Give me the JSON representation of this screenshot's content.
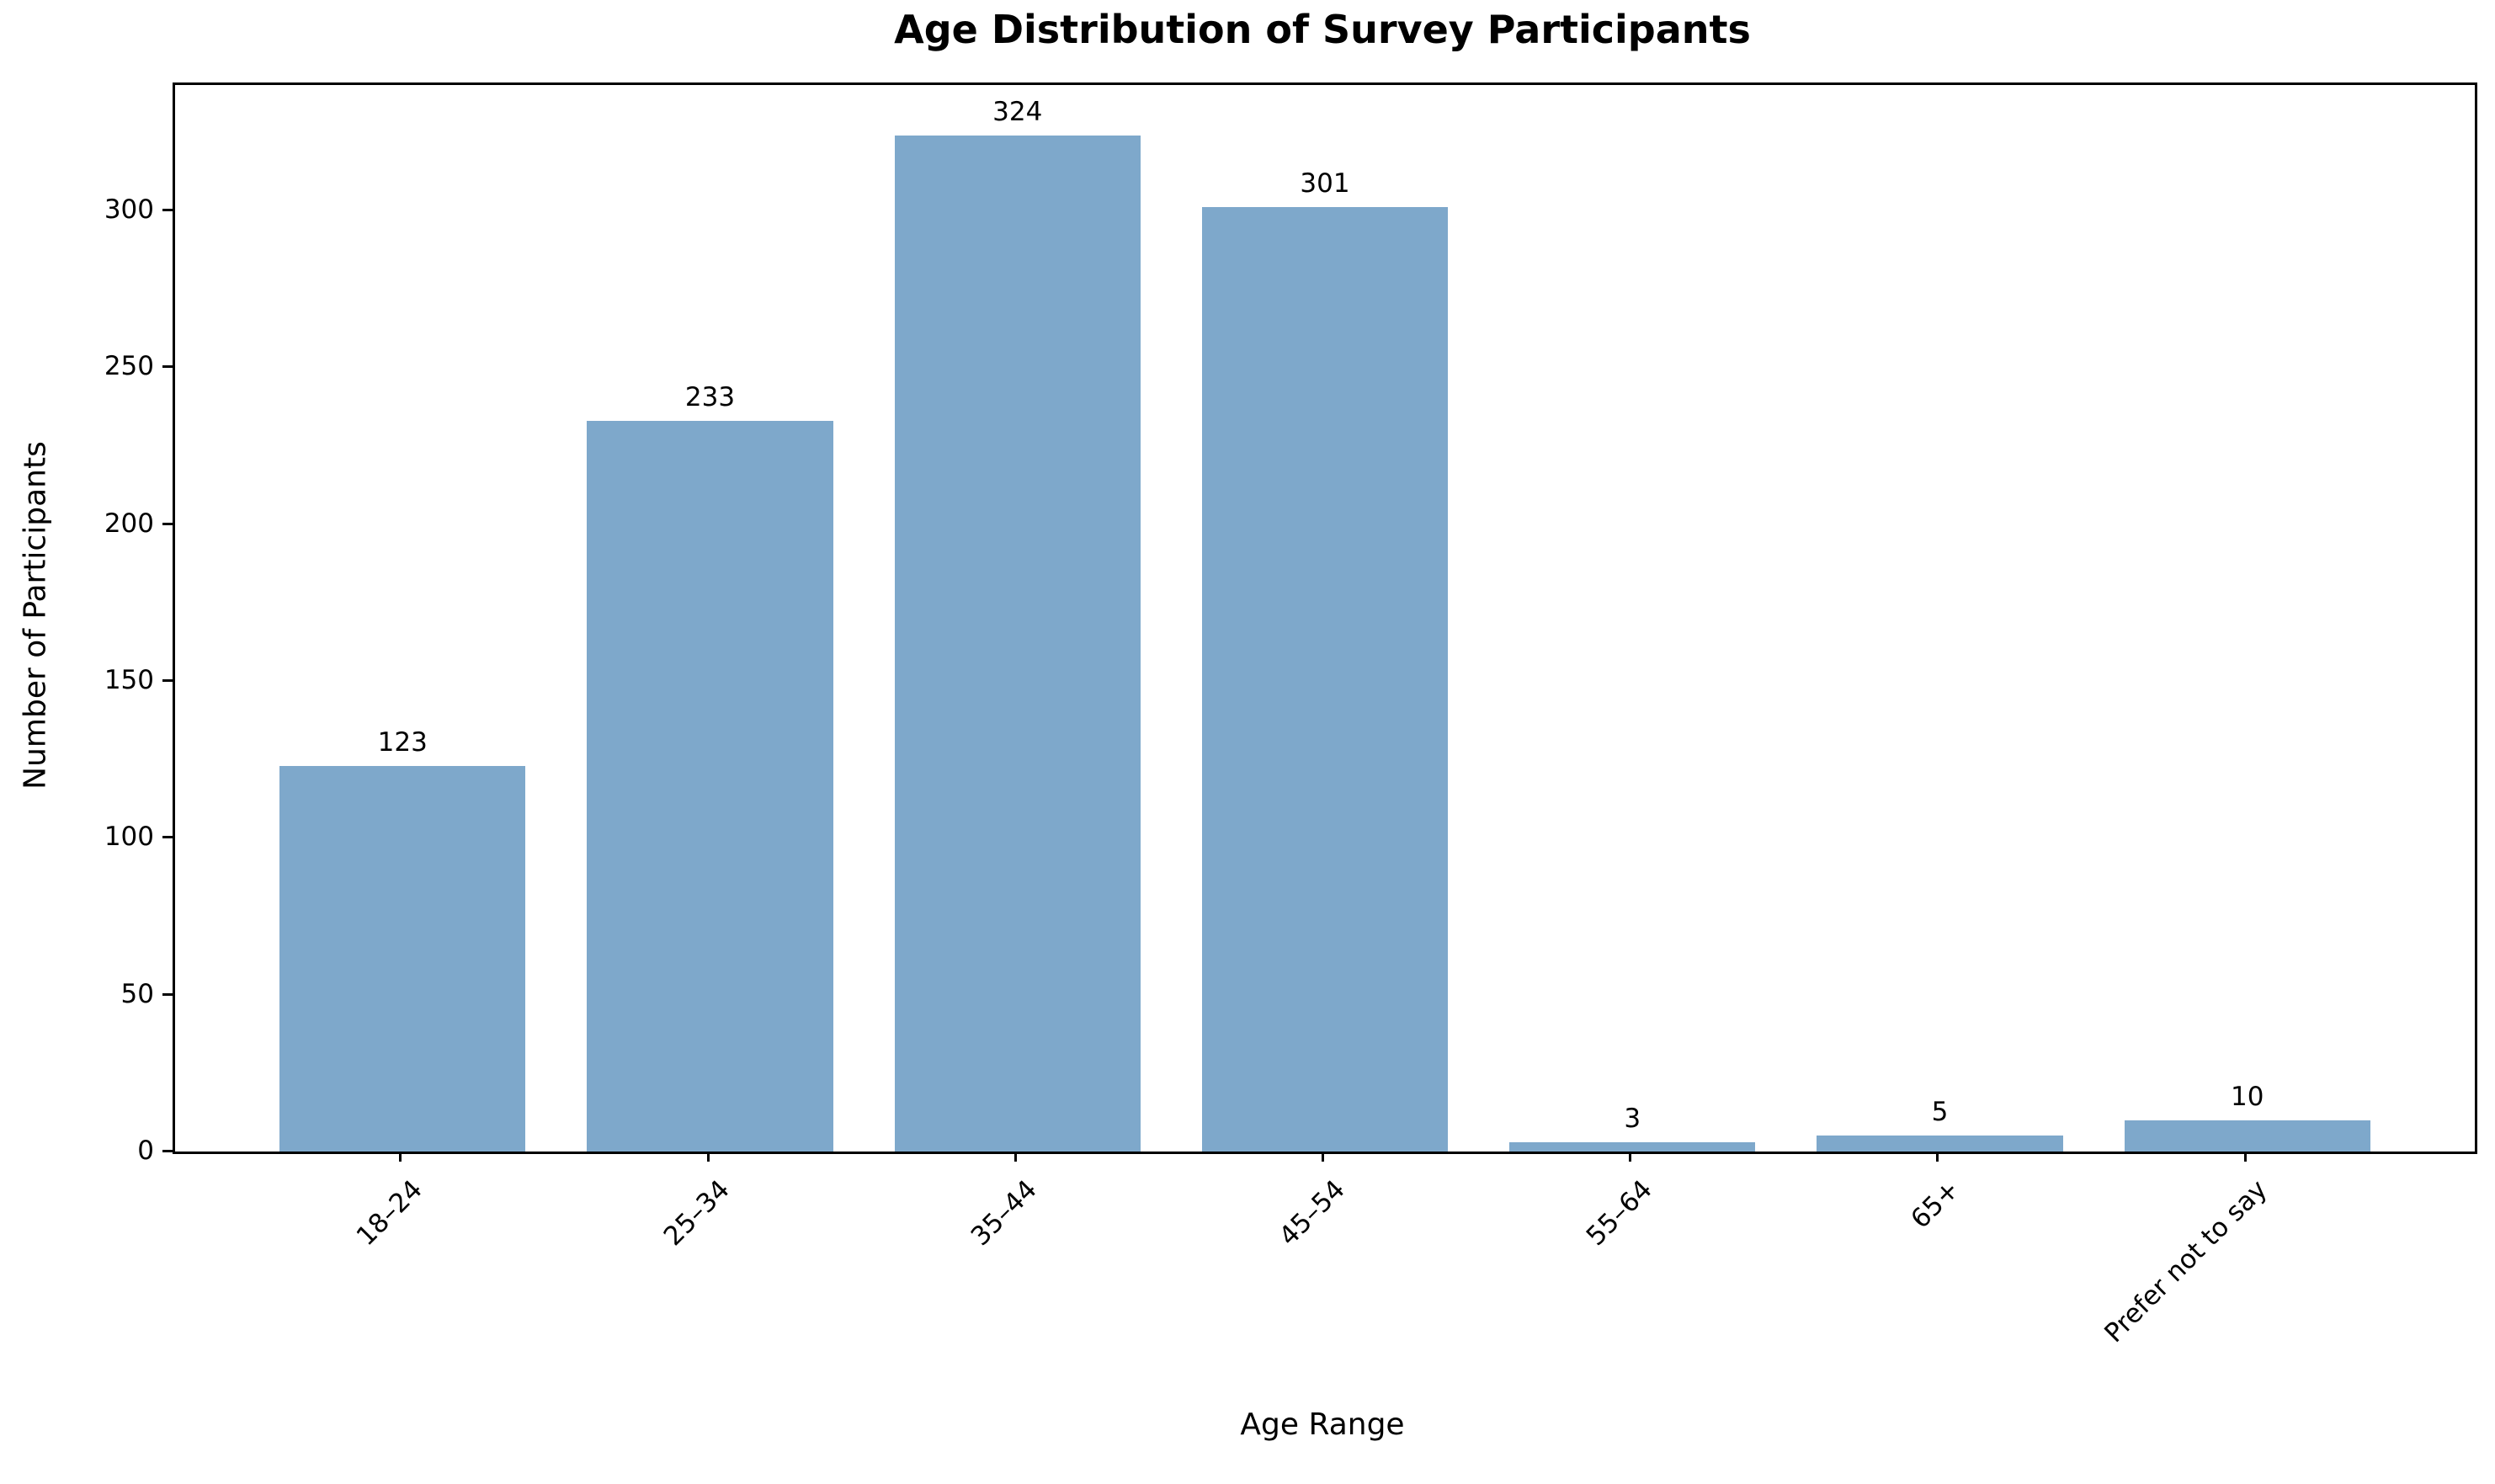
{
  "chart_data": {
    "type": "bar",
    "title": "Age Distribution of Survey Participants",
    "xlabel": "Age Range",
    "ylabel": "Number of Participants",
    "categories": [
      "18–24",
      "25–34",
      "35–44",
      "45–54",
      "55–64",
      "65+",
      "Prefer not to say"
    ],
    "values": [
      123,
      233,
      324,
      301,
      3,
      5,
      10
    ],
    "value_labels": [
      "123",
      "233",
      "324",
      "301",
      "3",
      "5",
      "10"
    ],
    "yticks": [
      0,
      50,
      100,
      150,
      200,
      250,
      300
    ],
    "ylim": [
      0,
      340
    ],
    "xtick_rotation_deg": 45,
    "grid": false,
    "legend_shown": false,
    "bar_color": "#7EA8CB",
    "axis_color": "#000000",
    "text_color": "#000000",
    "background_color": "#FFFFFF"
  }
}
